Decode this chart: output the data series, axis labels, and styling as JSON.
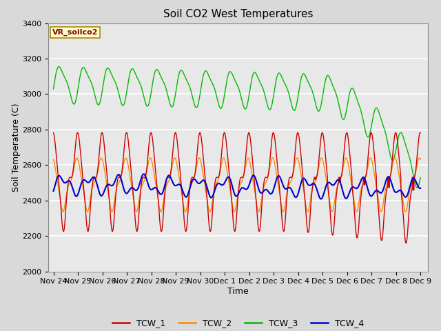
{
  "title": "Soil CO2 West Temperatures",
  "xlabel": "Time",
  "ylabel": "Soil Temperature (C)",
  "ylim": [
    2000,
    3400
  ],
  "annotation": "VR_soilco2",
  "series_colors": {
    "TCW_1": "#cc0000",
    "TCW_2": "#ff8800",
    "TCW_3": "#00bb00",
    "TCW_4": "#0000cc"
  },
  "xtick_labels": [
    "Nov 24",
    "Nov 25",
    "Nov 26",
    "Nov 27",
    "Nov 28",
    "Nov 29",
    "Nov 30",
    "Dec 1",
    "Dec 2",
    "Dec 3",
    "Dec 4",
    "Dec 5",
    "Dec 6",
    "Dec 7",
    "Dec 8",
    "Dec 9"
  ],
  "xtick_positions": [
    0,
    1,
    2,
    3,
    4,
    5,
    6,
    7,
    8,
    9,
    10,
    11,
    12,
    13,
    14,
    15
  ],
  "ytick_labels": [
    "2000",
    "2200",
    "2400",
    "2600",
    "2800",
    "3000",
    "3200",
    "3400"
  ],
  "ytick_positions": [
    2000,
    2200,
    2400,
    2600,
    2800,
    3000,
    3200,
    3400
  ],
  "background_color": "#d9d9d9",
  "plot_bg_color": "#e8e8e8",
  "grid_color": "#ffffff",
  "title_fontsize": 11,
  "axis_label_fontsize": 9,
  "tick_fontsize": 8
}
